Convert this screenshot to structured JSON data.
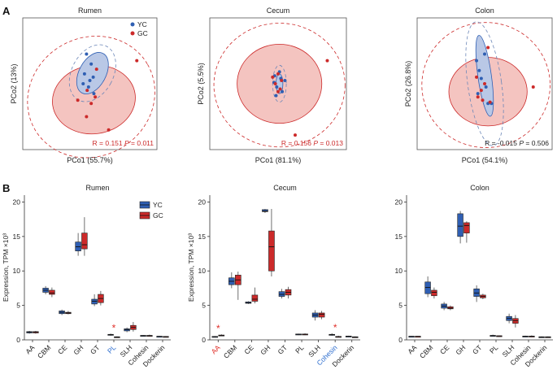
{
  "figure": {
    "panel_a_label": "A",
    "panel_b_label": "B",
    "colors": {
      "yc": "#2f5fb3",
      "gc": "#cc2a2a",
      "yc_fill": "#b9c8e6",
      "gc_fill": "#f4c4c0"
    }
  },
  "chart_data": [
    {
      "type": "scatter",
      "title": "Rumen",
      "xlabel": "PCo1 (55.7%)",
      "ylabel": "PCo2 (13%)",
      "stat_r": "R = 0.151",
      "stat_p_label": "P",
      "stat_p_value": " = 0.011",
      "stat_color": "#cc2a2a",
      "legend": [
        "YC",
        "GC"
      ],
      "xlim": [
        -1,
        1
      ],
      "ylim": [
        -1,
        1
      ],
      "series": [
        {
          "name": "YC",
          "points": [
            [
              -0.05,
              0.45
            ],
            [
              0.02,
              0.3
            ],
            [
              -0.08,
              0.15
            ],
            [
              0.0,
              0.05
            ],
            [
              -0.02,
              -0.05
            ],
            [
              0.06,
              -0.15
            ],
            [
              -0.1,
              0.0
            ],
            [
              0.05,
              0.1
            ]
          ]
        },
        {
          "name": "GC",
          "points": [
            [
              0.7,
              0.35
            ],
            [
              0.28,
              -0.7
            ],
            [
              0.02,
              -0.3
            ],
            [
              -0.18,
              -0.25
            ],
            [
              -0.05,
              -0.5
            ],
            [
              0.08,
              -0.2
            ],
            [
              -0.04,
              -0.1
            ],
            [
              0.1,
              0.22
            ]
          ]
        }
      ]
    },
    {
      "type": "scatter",
      "title": "Cecum",
      "xlabel": "PCo1 (81.1%)",
      "ylabel": "PCo2 (5.5%)",
      "stat_r": "R = 0.156",
      "stat_p_label": "P",
      "stat_p_value": " = 0.013",
      "stat_color": "#cc2a2a",
      "legend": [],
      "xlim": [
        -1,
        1
      ],
      "ylim": [
        -1,
        1
      ],
      "series": [
        {
          "name": "YC",
          "points": [
            [
              -0.05,
              0.12
            ],
            [
              0.04,
              0.08
            ],
            [
              -0.02,
              -0.05
            ],
            [
              0.06,
              -0.12
            ],
            [
              -0.06,
              0.02
            ],
            [
              0.02,
              0.18
            ],
            [
              0.1,
              0.05
            ],
            [
              -0.03,
              -0.18
            ]
          ]
        },
        {
          "name": "GC",
          "points": [
            [
              0.0,
              0.15
            ],
            [
              -0.04,
              0.0
            ],
            [
              0.03,
              -0.08
            ],
            [
              0.72,
              0.35
            ],
            [
              0.25,
              -0.78
            ],
            [
              -0.08,
              0.1
            ],
            [
              0.05,
              0.05
            ],
            [
              0.0,
              -0.12
            ]
          ]
        }
      ]
    },
    {
      "type": "scatter",
      "title": "Colon",
      "xlabel": "PCo1 (54.1%)",
      "ylabel": "PCo2 (26.8%)",
      "stat_r": "R = -0.015",
      "stat_p_label": "P",
      "stat_p_value": " = 0.506",
      "stat_color": "#222222",
      "legend": [],
      "xlim": [
        -1,
        1
      ],
      "ylim": [
        -1,
        1
      ],
      "series": [
        {
          "name": "YC",
          "points": [
            [
              -0.12,
              0.35
            ],
            [
              -0.08,
              0.2
            ],
            [
              -0.05,
              0.08
            ],
            [
              0.02,
              -0.05
            ],
            [
              0.05,
              -0.3
            ],
            [
              0.1,
              -0.3
            ],
            [
              -0.1,
              -0.15
            ],
            [
              0.0,
              0.45
            ]
          ]
        },
        {
          "name": "GC",
          "points": [
            [
              0.05,
              0.55
            ],
            [
              0.72,
              -0.05
            ],
            [
              -0.1,
              -0.2
            ],
            [
              -0.05,
              -0.1
            ],
            [
              0.0,
              0.0
            ],
            [
              -0.12,
              0.1
            ],
            [
              0.08,
              -0.28
            ],
            [
              -0.03,
              -0.25
            ]
          ]
        }
      ]
    },
    {
      "type": "box",
      "title": "Rumen",
      "xlabel": "",
      "ylabel": "Expression, TPM ×10³",
      "ylim": [
        0,
        21
      ],
      "yticks": [
        0,
        5,
        10,
        15,
        20
      ],
      "categories": [
        "AA",
        "CBM",
        "CE",
        "GH",
        "GT",
        "PL",
        "SLH",
        "Cohesin",
        "Dockerin"
      ],
      "highlight": {
        "PL": "blue"
      },
      "sig_marks": [
        {
          "category": "PL",
          "mark": "*"
        }
      ],
      "legend": [
        "YC",
        "GC"
      ],
      "series": [
        {
          "name": "YC",
          "boxes": [
            [
              0.9,
              1.0,
              1.1,
              1.2,
              1.3
            ],
            [
              6.6,
              6.9,
              7.2,
              7.5,
              7.8
            ],
            [
              3.6,
              3.8,
              4.0,
              4.2,
              4.4
            ],
            [
              12.2,
              12.9,
              13.5,
              14.2,
              15.5
            ],
            [
              4.9,
              5.2,
              5.6,
              5.9,
              6.6
            ],
            [
              0.6,
              0.7,
              0.75,
              0.8,
              0.9
            ],
            [
              1.1,
              1.3,
              1.5,
              1.6,
              1.8
            ],
            [
              0.5,
              0.55,
              0.6,
              0.65,
              0.7
            ],
            [
              0.4,
              0.45,
              0.5,
              0.52,
              0.55
            ]
          ]
        },
        {
          "name": "GC",
          "boxes": [
            [
              0.9,
              1.0,
              1.1,
              1.2,
              1.3
            ],
            [
              6.2,
              6.6,
              6.8,
              7.2,
              7.6
            ],
            [
              3.7,
              3.8,
              3.9,
              4.0,
              4.2
            ],
            [
              12.2,
              13.2,
              13.8,
              15.5,
              17.8
            ],
            [
              5.0,
              5.4,
              6.0,
              6.6,
              7.1
            ],
            [
              0.3,
              0.35,
              0.4,
              0.45,
              0.5
            ],
            [
              1.2,
              1.5,
              1.8,
              2.1,
              2.6
            ],
            [
              0.5,
              0.55,
              0.6,
              0.65,
              0.75
            ],
            [
              0.35,
              0.4,
              0.45,
              0.5,
              0.55
            ]
          ]
        }
      ]
    },
    {
      "type": "box",
      "title": "Cecum",
      "xlabel": "",
      "ylabel": "Expression, TPM ×10³",
      "ylim": [
        0,
        21
      ],
      "yticks": [
        0,
        5,
        10,
        15,
        20
      ],
      "categories": [
        "AA",
        "CBM",
        "CE",
        "GH",
        "GT",
        "PL",
        "SLH",
        "Cohesin",
        "Dockerin"
      ],
      "highlight": {
        "AA": "red",
        "Cohesin": "blue"
      },
      "sig_marks": [
        {
          "category": "AA",
          "mark": "*"
        },
        {
          "category": "Cohesin",
          "mark": "*"
        }
      ],
      "legend": [],
      "series": [
        {
          "name": "YC",
          "boxes": [
            [
              0.35,
              0.4,
              0.45,
              0.5,
              0.55
            ],
            [
              7.5,
              8.0,
              8.5,
              9.0,
              9.8
            ],
            [
              5.2,
              5.3,
              5.4,
              5.5,
              5.6
            ],
            [
              18.4,
              18.6,
              18.7,
              18.9,
              19.0
            ],
            [
              6.0,
              6.3,
              6.6,
              7.0,
              7.4
            ],
            [
              0.7,
              0.75,
              0.8,
              0.85,
              0.9
            ],
            [
              2.8,
              3.3,
              3.6,
              3.9,
              4.3
            ],
            [
              0.6,
              0.7,
              0.75,
              0.8,
              0.95
            ],
            [
              0.4,
              0.45,
              0.5,
              0.55,
              0.6
            ]
          ]
        },
        {
          "name": "GC",
          "boxes": [
            [
              0.55,
              0.6,
              0.65,
              0.7,
              0.8
            ],
            [
              5.8,
              8.0,
              8.7,
              9.4,
              9.9
            ],
            [
              5.3,
              5.6,
              5.9,
              6.5,
              7.6
            ],
            [
              9.2,
              10.0,
              13.5,
              15.8,
              19.0
            ],
            [
              6.0,
              6.5,
              6.9,
              7.3,
              7.7
            ],
            [
              0.7,
              0.75,
              0.8,
              0.85,
              0.95
            ],
            [
              3.0,
              3.3,
              3.7,
              3.9,
              4.2
            ],
            [
              0.35,
              0.4,
              0.45,
              0.5,
              0.6
            ],
            [
              0.3,
              0.35,
              0.4,
              0.45,
              0.5
            ]
          ]
        }
      ]
    },
    {
      "type": "box",
      "title": "Colon",
      "xlabel": "",
      "ylabel": "",
      "ylim": [
        0,
        21
      ],
      "yticks": [
        0,
        5,
        10,
        15,
        20
      ],
      "categories": [
        "AA",
        "CBM",
        "CE",
        "GH",
        "GT",
        "PL",
        "SLH",
        "Cohesin",
        "Dockerin"
      ],
      "highlight": {},
      "sig_marks": [],
      "legend": [],
      "series": [
        {
          "name": "YC",
          "boxes": [
            [
              0.4,
              0.45,
              0.5,
              0.52,
              0.55
            ],
            [
              6.2,
              6.7,
              7.6,
              8.4,
              9.2
            ],
            [
              4.3,
              4.6,
              4.9,
              5.2,
              5.5
            ],
            [
              14.0,
              15.0,
              16.5,
              18.3,
              18.7
            ],
            [
              5.5,
              6.3,
              6.8,
              7.4,
              7.9
            ],
            [
              0.5,
              0.55,
              0.6,
              0.65,
              0.75
            ],
            [
              2.4,
              2.8,
              3.1,
              3.4,
              3.8
            ],
            [
              0.4,
              0.45,
              0.5,
              0.55,
              0.6
            ],
            [
              0.3,
              0.35,
              0.4,
              0.45,
              0.5
            ]
          ]
        },
        {
          "name": "GC",
          "boxes": [
            [
              0.4,
              0.45,
              0.5,
              0.52,
              0.55
            ],
            [
              6.0,
              6.4,
              6.9,
              7.2,
              7.6
            ],
            [
              4.3,
              4.5,
              4.6,
              4.8,
              5.0
            ],
            [
              14.1,
              15.5,
              16.6,
              17.0,
              17.2
            ],
            [
              5.9,
              6.1,
              6.3,
              6.5,
              6.7
            ],
            [
              0.45,
              0.5,
              0.55,
              0.6,
              0.65
            ],
            [
              1.8,
              2.4,
              2.8,
              3.1,
              3.6
            ],
            [
              0.4,
              0.45,
              0.5,
              0.55,
              0.65
            ],
            [
              0.3,
              0.35,
              0.4,
              0.45,
              0.5
            ]
          ]
        }
      ]
    }
  ]
}
